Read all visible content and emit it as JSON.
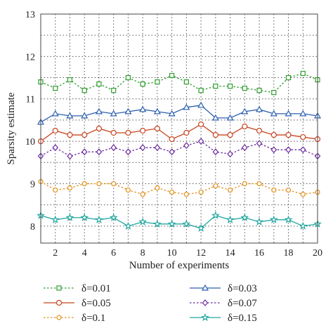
{
  "chart_data": {
    "type": "line",
    "xlabel": "Number of experiments",
    "ylabel": "Sparsity estimate",
    "xlim": [
      1,
      20
    ],
    "ylim": [
      7.6,
      13
    ],
    "xticks": [
      2,
      4,
      6,
      8,
      10,
      12,
      14,
      16,
      18,
      20
    ],
    "yticks": [
      8,
      9,
      10,
      11,
      12,
      13
    ],
    "grid": true,
    "legend_position": "bottom",
    "x": [
      1,
      2,
      3,
      4,
      5,
      6,
      7,
      8,
      9,
      10,
      11,
      12,
      13,
      14,
      15,
      16,
      17,
      18,
      19,
      20
    ],
    "series": [
      {
        "name": "δ=0.01",
        "color": "#2e9e2e",
        "marker": "square",
        "dash": true,
        "values": [
          11.4,
          11.25,
          11.45,
          11.2,
          11.35,
          11.2,
          11.5,
          11.35,
          11.4,
          11.55,
          11.4,
          11.2,
          11.3,
          11.3,
          11.25,
          11.2,
          11.15,
          11.5,
          11.6,
          11.45
        ]
      },
      {
        "name": "δ=0.03",
        "color": "#2b5fb0",
        "marker": "triangle",
        "dash": false,
        "values": [
          10.45,
          10.65,
          10.6,
          10.6,
          10.7,
          10.65,
          10.7,
          10.75,
          10.7,
          10.65,
          10.8,
          10.85,
          10.55,
          10.55,
          10.7,
          10.75,
          10.65,
          10.65,
          10.65,
          10.6
        ]
      },
      {
        "name": "δ=0.05",
        "color": "#c8431f",
        "marker": "circle",
        "dash": false,
        "values": [
          10.0,
          10.25,
          10.15,
          10.15,
          10.3,
          10.2,
          10.2,
          10.25,
          10.3,
          10.05,
          10.2,
          10.4,
          10.15,
          10.15,
          10.35,
          10.25,
          10.15,
          10.15,
          10.1,
          10.05
        ]
      },
      {
        "name": "δ=0.07",
        "color": "#6a2a9c",
        "marker": "diamond",
        "dash": true,
        "values": [
          9.65,
          9.85,
          9.65,
          9.75,
          9.75,
          9.85,
          9.75,
          9.85,
          9.85,
          9.75,
          9.9,
          10.0,
          9.75,
          9.7,
          9.85,
          9.95,
          9.8,
          9.8,
          9.8,
          9.65
        ]
      },
      {
        "name": "δ=0.1",
        "color": "#e0901a",
        "marker": "circle-open",
        "dash": true,
        "values": [
          9.05,
          8.85,
          8.9,
          9.0,
          9.0,
          9.0,
          8.85,
          8.75,
          8.9,
          8.8,
          8.75,
          8.8,
          8.95,
          8.85,
          9.0,
          9.0,
          8.85,
          8.85,
          8.75,
          8.8
        ]
      },
      {
        "name": "δ=0.15",
        "color": "#24a7a0",
        "marker": "star",
        "dash": false,
        "values": [
          8.25,
          8.15,
          8.2,
          8.2,
          8.15,
          8.2,
          8.0,
          8.1,
          8.05,
          8.05,
          8.05,
          7.95,
          8.25,
          8.15,
          8.2,
          8.1,
          8.15,
          8.15,
          8.0,
          8.05
        ]
      }
    ]
  }
}
